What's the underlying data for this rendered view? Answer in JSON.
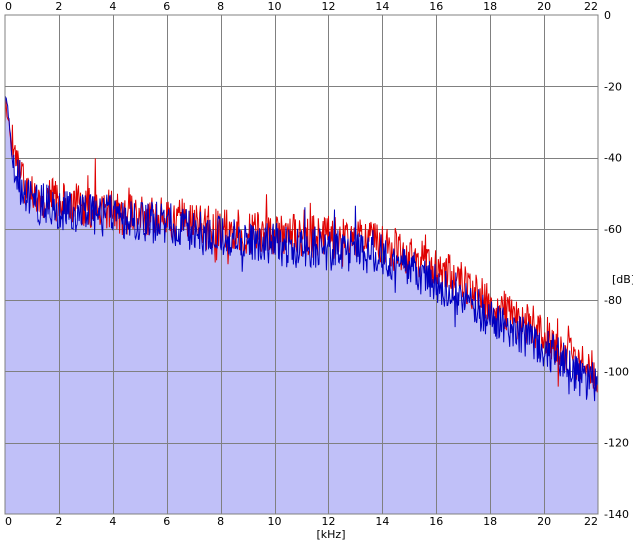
{
  "chart_data": {
    "type": "area",
    "title": "",
    "xlabel": "[kHz]",
    "ylabel": "[dB]",
    "xlim": [
      0,
      22
    ],
    "ylim": [
      -140,
      0
    ],
    "x_ticks": [
      0,
      2,
      4,
      6,
      8,
      10,
      12,
      14,
      16,
      18,
      20,
      22
    ],
    "y_ticks": [
      0,
      -20,
      -40,
      -60,
      -80,
      -100,
      -120,
      -140
    ],
    "x_tick_labels": [
      "0",
      "2",
      "4",
      "6",
      "8",
      "10",
      "12",
      "14",
      "16",
      "18",
      "20",
      "22"
    ],
    "y_tick_labels": [
      "0",
      "-20",
      "-40",
      "-60",
      "-80",
      "-100",
      "-120",
      "-140"
    ],
    "grid": true,
    "legend": "none",
    "series": [
      {
        "color": "#e00000",
        "x": [
          0,
          0.1,
          0.25,
          0.5,
          0.75,
          1,
          1.5,
          2,
          2.5,
          3,
          3.5,
          4,
          4.5,
          5,
          5.5,
          6,
          6.5,
          7,
          7.5,
          8,
          8.5,
          9,
          9.5,
          10,
          10.5,
          11,
          11.5,
          12,
          12.5,
          13,
          13.5,
          14,
          14.5,
          15,
          15.5,
          16,
          16.5,
          17,
          17.5,
          18,
          18.5,
          19,
          19.5,
          20,
          20.5,
          21,
          21.5,
          22
        ],
        "values": [
          -25,
          -28,
          -38,
          -45,
          -50,
          -52,
          -53,
          -54,
          -55,
          -55,
          -56,
          -57,
          -58,
          -58,
          -59,
          -59,
          -59,
          -60,
          -61,
          -62,
          -62,
          -63,
          -63,
          -63,
          -63,
          -64,
          -64,
          -64,
          -65,
          -65,
          -65,
          -66,
          -68,
          -70,
          -71,
          -73,
          -75,
          -77,
          -80,
          -83,
          -85,
          -87,
          -89,
          -91,
          -94,
          -97,
          -100,
          -102
        ]
      },
      {
        "color": "#0000c0",
        "x": [
          0,
          0.1,
          0.25,
          0.5,
          0.75,
          1,
          1.5,
          2,
          2.5,
          3,
          3.5,
          4,
          4.5,
          5,
          5.5,
          6,
          6.5,
          7,
          7.5,
          8,
          8.5,
          9,
          9.5,
          10,
          10.5,
          11,
          11.5,
          12,
          12.5,
          13,
          13.5,
          14,
          14.5,
          15,
          15.5,
          16,
          16.5,
          17,
          17.5,
          18,
          18.5,
          19,
          19.5,
          20,
          20.5,
          21,
          21.5,
          22
        ],
        "values": [
          -24,
          -27,
          -40,
          -47,
          -52,
          -54,
          -55,
          -56,
          -57,
          -57,
          -58,
          -58,
          -59,
          -60,
          -60,
          -60,
          -61,
          -62,
          -63,
          -64,
          -65,
          -66,
          -66,
          -66,
          -67,
          -67,
          -67,
          -68,
          -68,
          -68,
          -69,
          -69,
          -71,
          -73,
          -75,
          -77,
          -79,
          -81,
          -84,
          -87,
          -89,
          -91,
          -93,
          -95,
          -98,
          -101,
          -104,
          -105
        ]
      }
    ],
    "fill_color": "#c0c0f8"
  }
}
